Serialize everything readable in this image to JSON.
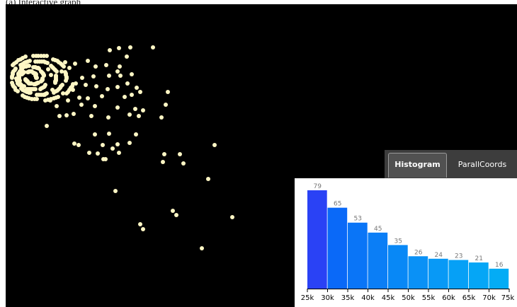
{
  "caption": "(a) Interactive graph",
  "tabs": [
    {
      "label": "Histogram",
      "active": true
    },
    {
      "label": "ParallCoords",
      "active": false
    }
  ],
  "colors": {
    "background": "#000000",
    "point": "#fdf6c4",
    "tab_bar": "#3d3d3d",
    "bar_selected": "#2a42f5",
    "bar_mid": "#0a75f7",
    "bar_light": "#05a6f6"
  },
  "chart_data": {
    "type": "bar",
    "categories": [
      "25k-30k",
      "30k-35k",
      "35k-40k",
      "40k-45k",
      "45k-50k",
      "50k-55k",
      "55k-60k",
      "60k-65k",
      "65k-70k",
      "70k-75k"
    ],
    "values": [
      79,
      65,
      53,
      45,
      35,
      26,
      24,
      23,
      21,
      16
    ],
    "tick_labels": [
      "25k",
      "30k",
      "35k",
      "40k",
      "45k",
      "50k",
      "55k",
      "60k",
      "65k",
      "70k",
      "75k"
    ],
    "bar_colors": [
      "#2a42f5",
      "#0a69f8",
      "#0a75f7",
      "#0b7ef6",
      "#0888f6",
      "#0a91f6",
      "#0899f6",
      "#06a0f6",
      "#05a6f6",
      "#04acf5"
    ],
    "ylim": [
      0,
      79
    ],
    "xlabel": "",
    "ylabel": ""
  }
}
